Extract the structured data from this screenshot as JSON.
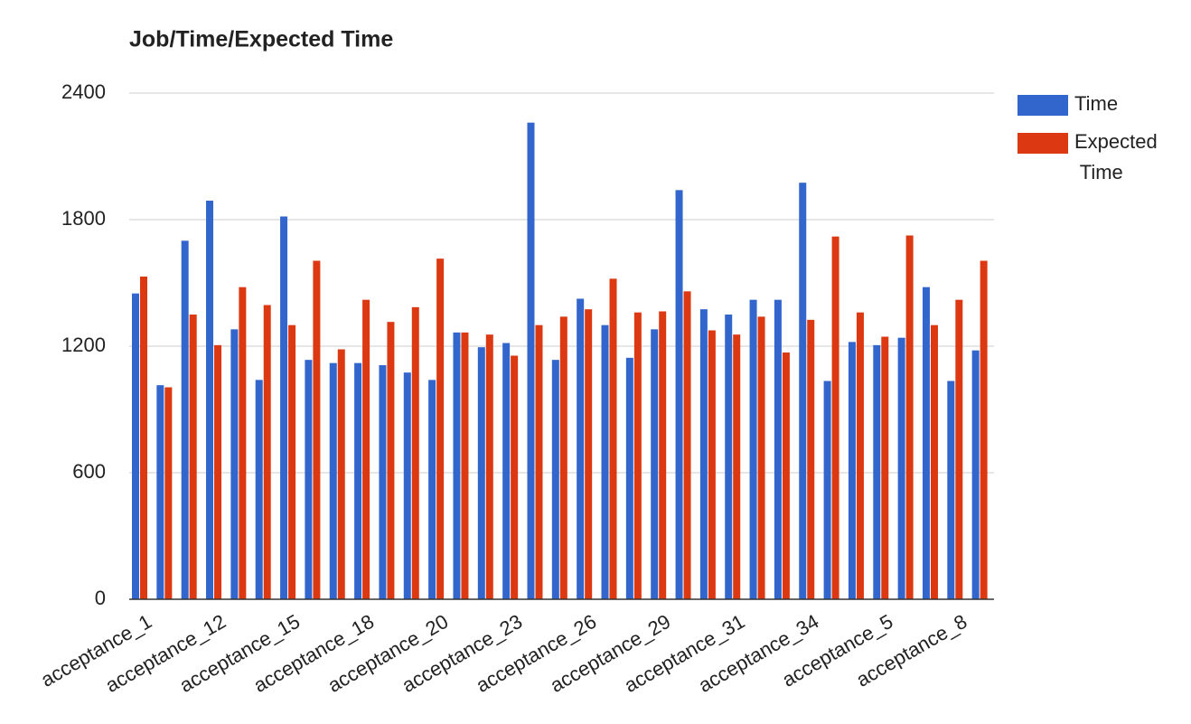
{
  "chart_data": {
    "type": "bar",
    "title": "Job/Time/Expected Time",
    "categories": [
      "acceptance_1",
      null,
      null,
      "acceptance_12",
      null,
      null,
      "acceptance_15",
      null,
      null,
      "acceptance_18",
      null,
      null,
      "acceptance_20",
      null,
      null,
      "acceptance_23",
      null,
      null,
      "acceptance_26",
      null,
      null,
      "acceptance_29",
      null,
      null,
      "acceptance_31",
      null,
      null,
      "acceptance_34",
      null,
      null,
      "acceptance_5",
      null,
      null,
      "acceptance_8",
      null
    ],
    "series": [
      {
        "name": "Time",
        "color": "#3366cc",
        "values": [
          1450,
          1015,
          1700,
          1890,
          1280,
          1040,
          1815,
          1135,
          1120,
          1120,
          1110,
          1075,
          1040,
          1265,
          1195,
          1215,
          2260,
          1135,
          1425,
          1300,
          1145,
          1280,
          1940,
          1375,
          1350,
          1420,
          1420,
          1975,
          1035,
          1220,
          1205,
          1240,
          1480,
          1035,
          1180
        ]
      },
      {
        "name": "Expected Time",
        "color": "#dc3912",
        "values": [
          1530,
          1005,
          1350,
          1205,
          1480,
          1395,
          1300,
          1605,
          1185,
          1420,
          1315,
          1385,
          1615,
          1265,
          1255,
          1155,
          1300,
          1340,
          1375,
          1520,
          1360,
          1365,
          1460,
          1275,
          1255,
          1340,
          1170,
          1325,
          1720,
          1360,
          1245,
          1725,
          1300,
          1420,
          1605
        ]
      }
    ],
    "ylim": [
      0,
      2400
    ],
    "yticks": [
      0,
      600,
      1200,
      1800,
      2400
    ],
    "grid": true,
    "legend": "right"
  }
}
